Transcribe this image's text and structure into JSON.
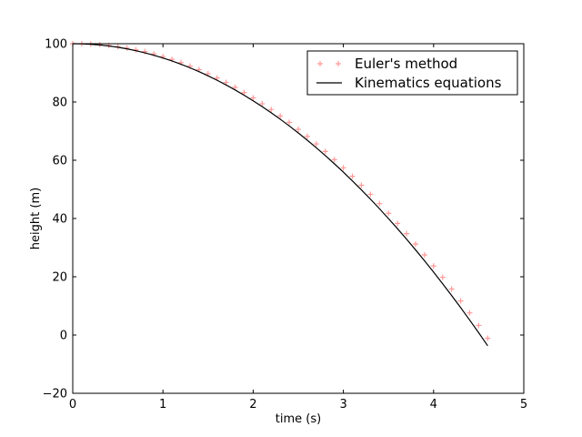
{
  "chart_data": {
    "type": "line",
    "title": "",
    "xlabel": "time (s)",
    "ylabel": "height (m)",
    "xlim": [
      0,
      5
    ],
    "ylim": [
      -20,
      100
    ],
    "x_ticks": [
      0,
      1,
      2,
      3,
      4,
      5
    ],
    "y_ticks": [
      -20,
      0,
      20,
      40,
      60,
      80,
      100
    ],
    "x_tick_labels": [
      "0",
      "1",
      "2",
      "3",
      "4",
      "5"
    ],
    "y_tick_labels": [
      "−20",
      "0",
      "20",
      "40",
      "60",
      "80",
      "100"
    ],
    "grid": false,
    "legend_position": "top-right",
    "series": [
      {
        "name": "Euler's method",
        "style": "markers-plus",
        "color": "#ff9999",
        "x": [
          0.0,
          0.1,
          0.2,
          0.3,
          0.4,
          0.5,
          0.6,
          0.7,
          0.8,
          0.9,
          1.0,
          1.1,
          1.2,
          1.3,
          1.4,
          1.5,
          1.6,
          1.7,
          1.8,
          1.9,
          2.0,
          2.1,
          2.2,
          2.3,
          2.4,
          2.5,
          2.6,
          2.7,
          2.8,
          2.9,
          3.0,
          3.1,
          3.2,
          3.3,
          3.4,
          3.5,
          3.6,
          3.7,
          3.8,
          3.9,
          4.0,
          4.1,
          4.2,
          4.3,
          4.4,
          4.5,
          4.6
        ],
        "y": [
          100.0,
          100.0,
          99.9,
          99.7,
          99.4,
          99.0,
          98.5,
          97.9,
          97.3,
          96.5,
          95.6,
          94.6,
          93.5,
          92.3,
          91.1,
          89.7,
          88.2,
          86.7,
          85.0,
          83.2,
          81.4,
          79.4,
          77.4,
          75.2,
          73.0,
          70.6,
          68.2,
          65.6,
          63.0,
          60.2,
          57.4,
          54.5,
          51.4,
          48.3,
          45.1,
          41.8,
          38.3,
          34.8,
          31.2,
          27.5,
          23.7,
          19.8,
          15.8,
          11.7,
          7.6,
          3.3,
          -1.1
        ]
      },
      {
        "name": "Kinematics equations",
        "style": "line",
        "color": "#000000",
        "x": [
          0.0,
          0.1,
          0.2,
          0.3,
          0.4,
          0.5,
          0.6,
          0.7,
          0.8,
          0.9,
          1.0,
          1.1,
          1.2,
          1.3,
          1.4,
          1.5,
          1.6,
          1.7,
          1.8,
          1.9,
          2.0,
          2.1,
          2.2,
          2.3,
          2.4,
          2.5,
          2.6,
          2.7,
          2.8,
          2.9,
          3.0,
          3.1,
          3.2,
          3.3,
          3.4,
          3.5,
          3.6,
          3.7,
          3.8,
          3.9,
          4.0,
          4.1,
          4.2,
          4.3,
          4.4,
          4.5,
          4.6
        ],
        "y": [
          100.0,
          99.95,
          99.8,
          99.56,
          99.22,
          98.78,
          98.24,
          97.6,
          96.86,
          96.03,
          95.1,
          94.07,
          92.94,
          91.72,
          90.4,
          88.97,
          87.46,
          85.84,
          84.12,
          82.31,
          80.4,
          78.39,
          76.28,
          74.08,
          71.78,
          69.38,
          66.88,
          64.28,
          61.58,
          58.79,
          55.9,
          52.91,
          49.82,
          46.64,
          43.36,
          39.97,
          36.5,
          32.92,
          29.24,
          25.47,
          21.6,
          17.63,
          13.56,
          9.4,
          5.14,
          0.78,
          -3.68
        ]
      }
    ]
  }
}
